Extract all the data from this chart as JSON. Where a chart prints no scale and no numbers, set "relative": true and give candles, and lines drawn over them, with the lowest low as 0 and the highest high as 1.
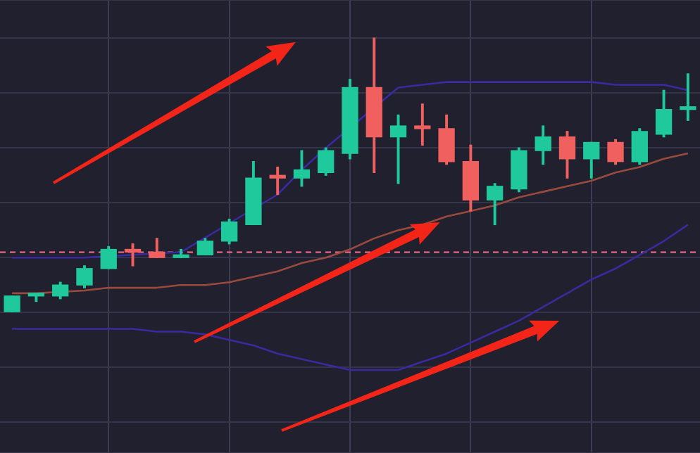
{
  "chart_data": {
    "type": "candlestick",
    "relative": true,
    "grid": true,
    "categories": [
      null,
      null,
      null,
      null,
      null,
      null,
      null,
      null,
      null,
      null,
      null,
      null,
      null,
      null,
      null,
      null,
      null,
      null,
      null,
      null,
      null,
      null,
      null,
      null,
      null,
      null,
      null,
      null,
      null
    ],
    "ohlc": [
      [
        0,
        0.06,
        0,
        0.06
      ],
      [
        0.06,
        0.07,
        0.04,
        0.07
      ],
      [
        0.06,
        0.11,
        0.05,
        0.1
      ],
      [
        0.1,
        0.17,
        0.09,
        0.16
      ],
      [
        0.16,
        0.24,
        0.16,
        0.23
      ],
      [
        0.23,
        0.25,
        0.17,
        0.22
      ],
      [
        0.22,
        0.27,
        0.2,
        0.2
      ],
      [
        0.2,
        0.23,
        0.2,
        0.21
      ],
      [
        0.21,
        0.27,
        0.21,
        0.26
      ],
      [
        0.26,
        0.34,
        0.25,
        0.33
      ],
      [
        0.32,
        0.55,
        0.32,
        0.49
      ],
      [
        0.5,
        0.53,
        0.43,
        0.49
      ],
      [
        0.49,
        0.59,
        0.46,
        0.52
      ],
      [
        0.51,
        0.6,
        0.5,
        0.59
      ],
      [
        0.58,
        0.85,
        0.56,
        0.82
      ],
      [
        0.82,
        1,
        0.51,
        0.64
      ],
      [
        0.64,
        0.72,
        0.47,
        0.68
      ],
      [
        0.68,
        0.76,
        0.61,
        0.67
      ],
      [
        0.67,
        0.72,
        0.54,
        0.55
      ],
      [
        0.55,
        0.61,
        0.37,
        0.41
      ],
      [
        0.41,
        0.47,
        0.32,
        0.46
      ],
      [
        0.45,
        0.6,
        0.44,
        0.59
      ],
      [
        0.59,
        0.68,
        0.54,
        0.64
      ],
      [
        0.64,
        0.66,
        0.49,
        0.56
      ],
      [
        0.56,
        0.62,
        0.49,
        0.62
      ],
      [
        0.62,
        0.63,
        0.54,
        0.55
      ],
      [
        0.55,
        0.67,
        0.54,
        0.66
      ],
      [
        0.65,
        0.81,
        0.64,
        0.74
      ],
      [
        0.74,
        0.87,
        0.7,
        0.75
      ]
    ],
    "colors": [
      "#1fc99b",
      "#1fc99b",
      "#1fc99b",
      "#1fc99b",
      "#1fc99b",
      "#f0605f",
      "#f0605f",
      "#1fc99b",
      "#1fc99b",
      "#1fc99b",
      "#1fc99b",
      "#f0605f",
      "#1fc99b",
      "#1fc99b",
      "#1fc99b",
      "#f0605f",
      "#1fc99b",
      "#f0605f",
      "#f0605f",
      "#f0605f",
      "#1fc99b",
      "#1fc99b",
      "#1fc99b",
      "#f0605f",
      "#1fc99b",
      "#f0605f",
      "#1fc99b",
      "#1fc99b",
      "#1fc99b"
    ],
    "series": [
      {
        "type": "line",
        "color": "#3a2aa0",
        "values": [
          0.2,
          0.2,
          0.2,
          0.2,
          null,
          0.21,
          null,
          0.22,
          null,
          null,
          null,
          0.43,
          0.52,
          0.6,
          null,
          null,
          0.82,
          0.83,
          0.84,
          0.84,
          0.84,
          0.84,
          0.84,
          0.84,
          0.84,
          0.83,
          0.83,
          0.83,
          0.81
        ]
      },
      {
        "type": "line",
        "color": "#9a4a3c",
        "values": [
          0.07,
          0.07,
          null,
          0.08,
          0.09,
          0.09,
          0.09,
          0.1,
          0.1,
          0.11,
          0.13,
          0.15,
          0.18,
          0.2,
          0.23,
          0.27,
          0.3,
          0.32,
          0.35,
          0.37,
          0.39,
          0.42,
          0.44,
          0.46,
          0.48,
          0.51,
          0.53,
          0.56,
          0.58
        ]
      },
      {
        "type": "line",
        "color": "#3a2aa0",
        "values": [
          -0.06,
          -0.06,
          -0.06,
          -0.06,
          -0.06,
          -0.06,
          -0.07,
          -0.07,
          -0.08,
          -0.1,
          -0.12,
          -0.15,
          -0.17,
          -0.19,
          -0.21,
          -0.21,
          -0.21,
          -0.18,
          -0.15,
          -0.11,
          -0.07,
          -0.03,
          0.02,
          0.07,
          0.12,
          0.16,
          0.21,
          0.26,
          0.32
        ]
      }
    ],
    "ref_lines": [
      {
        "axis": "y",
        "value": 0.22,
        "color": "#ff6f8e",
        "line_style": "dashed"
      }
    ]
  }
}
